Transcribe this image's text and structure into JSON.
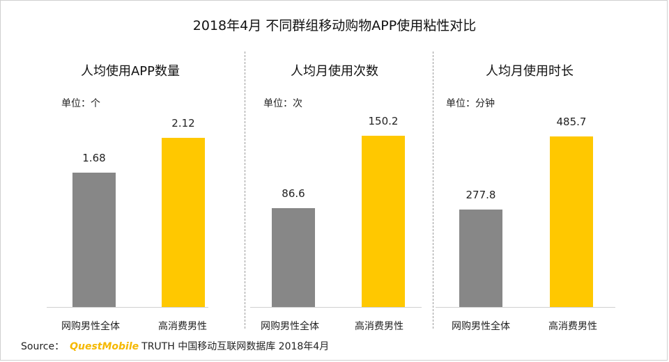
{
  "title": "2018年4月 不同群组移动购物APP使用粘性对比",
  "source": {
    "prefix": "Source：",
    "brand": "QuestMobile",
    "text": "TRUTH 中国移动互联网数据库 2018年4月"
  },
  "colors": {
    "series_general": "#878787",
    "series_high": "#ffc800"
  },
  "chart_data": [
    {
      "type": "bar",
      "title": "人均使用APP数量",
      "unit": "单位：个",
      "categories": [
        "网购男性全体",
        "高消费男性"
      ],
      "values": [
        1.68,
        2.12
      ],
      "value_labels": [
        "1.68",
        "2.12"
      ],
      "ylim": [
        0,
        2.4
      ]
    },
    {
      "type": "bar",
      "title": "人均月使用次数",
      "unit": "单位：次",
      "categories": [
        "网购男性全体",
        "高消费男性"
      ],
      "values": [
        86.6,
        150.2
      ],
      "value_labels": [
        "86.6",
        "150.2"
      ],
      "ylim": [
        0,
        168
      ]
    },
    {
      "type": "bar",
      "title": "人均月使用时长",
      "unit": "单位：分钟",
      "categories": [
        "网购男性全体",
        "高消费男性"
      ],
      "values": [
        277.8,
        485.7
      ],
      "value_labels": [
        "277.8",
        "485.7"
      ],
      "ylim": [
        0,
        545
      ]
    }
  ]
}
